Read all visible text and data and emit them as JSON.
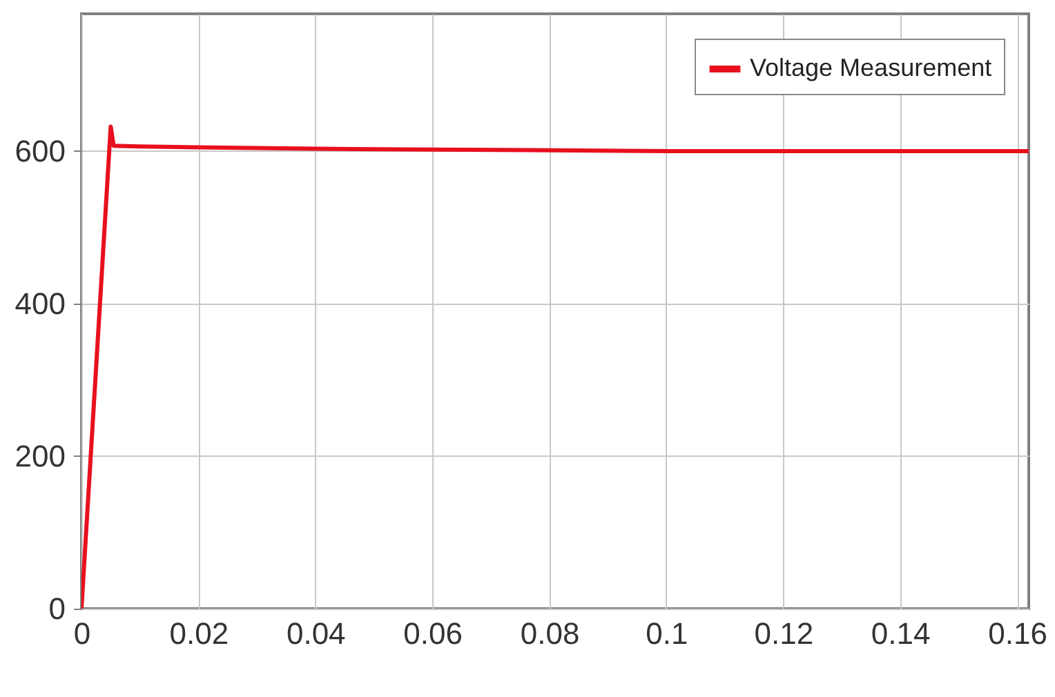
{
  "chart_data": {
    "type": "line",
    "x": [
      0,
      0.005,
      0.0055,
      0.01,
      0.02,
      0.04,
      0.06,
      0.08,
      0.1,
      0.12,
      0.14,
      0.162
    ],
    "series": [
      {
        "name": "Voltage Measurement",
        "color": "#e8101e",
        "values": [
          0,
          632,
          607,
          606,
          605,
          603,
          602,
          601,
          600,
          600,
          600,
          600
        ]
      }
    ],
    "xlim": [
      0,
      0.162
    ],
    "xticks": [
      0,
      0.02,
      0.04,
      0.06,
      0.08,
      0.1,
      0.12,
      0.14,
      0.16
    ],
    "ylim": [
      0,
      780
    ],
    "yticks": [
      0,
      200,
      400,
      600
    ],
    "grid": true,
    "legend": "top right",
    "marker": "none",
    "line_style": "solid"
  }
}
